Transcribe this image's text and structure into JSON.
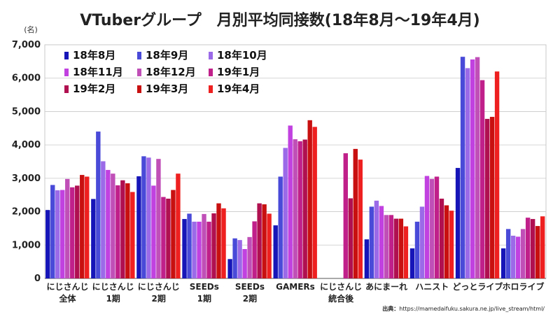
{
  "chart_data": {
    "type": "bar",
    "title": "VTuberグループ　月別平均同接数(18年8月～19年4月)",
    "ylabel": "(名)",
    "ylim": [
      0,
      7000
    ],
    "yticks": [
      0,
      1000,
      2000,
      3000,
      4000,
      5000,
      6000,
      7000
    ],
    "ytick_labels": [
      "0",
      "1,000",
      "2,000",
      "3,000",
      "4,000",
      "5,000",
      "6,000",
      "7,000"
    ],
    "grid": true,
    "legend_position": "top-left",
    "categories": [
      [
        "にじさんじ",
        "全体"
      ],
      [
        "にじさんじ",
        "1期"
      ],
      [
        "にじさんじ",
        "2期"
      ],
      [
        "SEEDs",
        "1期"
      ],
      [
        "SEEDs",
        "2期"
      ],
      [
        "GAMERs"
      ],
      [
        "にじさんじ",
        "統合後"
      ],
      [
        "あにまーれ"
      ],
      [
        "ハニスト"
      ],
      [
        "どっとライブ"
      ],
      [
        "ホロライブ"
      ]
    ],
    "series": [
      {
        "name": "18年8月",
        "color": "#1616b8",
        "values": [
          2050,
          2380,
          3060,
          1780,
          580,
          1590,
          null,
          1170,
          900,
          3310,
          900
        ]
      },
      {
        "name": "18年9月",
        "color": "#4a4ad8",
        "values": [
          2800,
          4400,
          3660,
          1940,
          1200,
          3050,
          null,
          2150,
          1700,
          6640,
          1480
        ]
      },
      {
        "name": "18年10月",
        "color": "#9a6ae8",
        "values": [
          2640,
          3510,
          3620,
          1700,
          1150,
          3910,
          null,
          2330,
          2150,
          6300,
          1280
        ]
      },
      {
        "name": "18年11月",
        "color": "#c040e0",
        "values": [
          2650,
          3250,
          2780,
          1700,
          880,
          4580,
          null,
          2170,
          3070,
          6560,
          1250
        ]
      },
      {
        "name": "18年12月",
        "color": "#c050b8",
        "values": [
          2980,
          3140,
          3580,
          1930,
          1240,
          4170,
          null,
          1900,
          2980,
          6630,
          1480
        ]
      },
      {
        "name": "19年1月",
        "color": "#c0208a",
        "values": [
          2730,
          2790,
          2440,
          1700,
          1710,
          4110,
          3750,
          1900,
          3050,
          5940,
          1820
        ]
      },
      {
        "name": "19年2月",
        "color": "#b01050",
        "values": [
          2780,
          2940,
          2390,
          1950,
          2250,
          4160,
          2400,
          1790,
          2390,
          4780,
          1780
        ]
      },
      {
        "name": "19年3月",
        "color": "#c81010",
        "values": [
          3100,
          2850,
          2650,
          2250,
          2220,
          4740,
          3880,
          1790,
          2190,
          4840,
          1570
        ]
      },
      {
        "name": "19年4月",
        "color": "#ee2020",
        "values": [
          3050,
          2590,
          3140,
          2100,
          1940,
          4540,
          3560,
          1560,
          2030,
          6200,
          1860
        ]
      }
    ],
    "source_label": "出典：",
    "source_url": "https://mamedaifuku.sakura.ne.jp/live_stream/html/"
  }
}
